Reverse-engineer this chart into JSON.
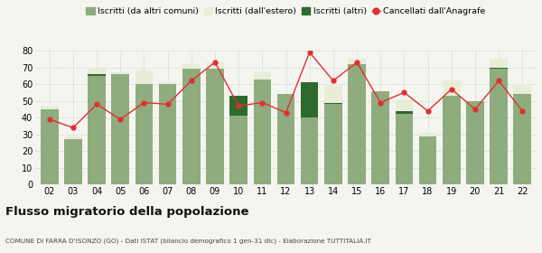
{
  "years": [
    "02",
    "03",
    "04",
    "05",
    "06",
    "07",
    "08",
    "09",
    "10",
    "11",
    "12",
    "13",
    "14",
    "15",
    "16",
    "17",
    "18",
    "19",
    "20",
    "21",
    "22"
  ],
  "iscritti_altri_comuni": [
    45,
    27,
    65,
    66,
    60,
    60,
    69,
    69,
    41,
    63,
    54,
    40,
    48,
    72,
    56,
    42,
    29,
    53,
    50,
    69,
    54
  ],
  "iscritti_estero": [
    2,
    2,
    4,
    1,
    8,
    1,
    3,
    4,
    0,
    4,
    0,
    3,
    11,
    3,
    0,
    9,
    2,
    9,
    0,
    6,
    6
  ],
  "iscritti_altri": [
    0,
    0,
    1,
    0,
    0,
    0,
    0,
    0,
    12,
    0,
    0,
    21,
    1,
    0,
    0,
    2,
    0,
    0,
    0,
    1,
    0
  ],
  "cancellati": [
    39,
    34,
    48,
    39,
    49,
    48,
    62,
    73,
    47,
    49,
    43,
    79,
    62,
    73,
    49,
    55,
    44,
    57,
    45,
    62,
    44
  ],
  "color_altri_comuni": "#8fac7e",
  "color_estero": "#e8edd8",
  "color_altri": "#2d6a2d",
  "color_cancellati": "#e03030",
  "bg_color": "#f5f5f0",
  "grid_color": "#d0d0d0",
  "title": "Flusso migratorio della popolazione",
  "subtitle": "COMUNE DI FARRA D'ISONZO (GO) - Dati ISTAT (bilancio demografico 1 gen-31 dic) - Elaborazione TUTTITALIA.IT",
  "legend_labels": [
    "Iscritti (da altri comuni)",
    "Iscritti (dall'estero)",
    "Iscritti (altri)",
    "Cancellati dall'Anagrafe"
  ],
  "ylim": [
    0,
    80
  ],
  "yticks": [
    0,
    10,
    20,
    30,
    40,
    50,
    60,
    70,
    80
  ]
}
